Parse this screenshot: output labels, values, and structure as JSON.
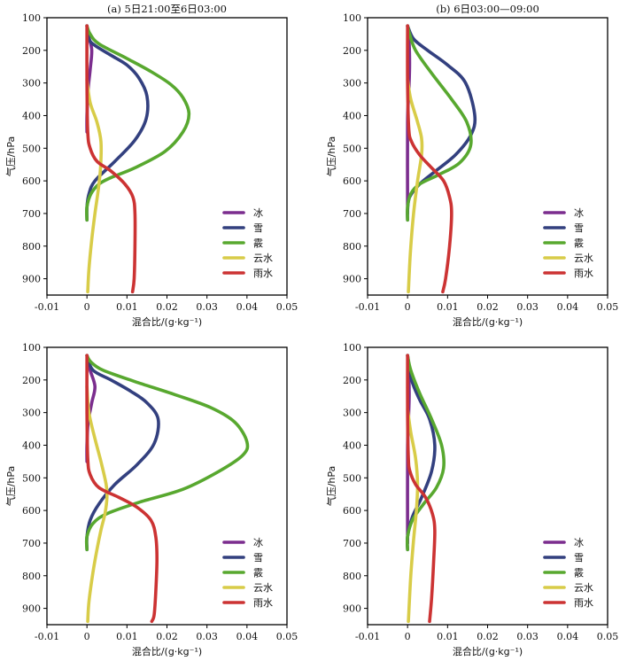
{
  "chart_data": [
    {
      "type": "line",
      "title": "(a) 5日21:00至6日03:00",
      "xlabel": "混合比/(g·kg⁻¹)",
      "ylabel": "气压/hPa",
      "xlim": [
        -0.01,
        0.05
      ],
      "ylim": [
        100,
        950
      ],
      "y_inverted": true,
      "xticks": [
        "-0.01",
        "0",
        "0.01",
        "0.02",
        "0.03",
        "0.04",
        "0.05"
      ],
      "yticks": [
        "100",
        "200",
        "300",
        "400",
        "500",
        "600",
        "700",
        "800",
        "900"
      ],
      "legend_position": "bottom-right",
      "series": [
        {
          "name": "冰",
          "color": "#7b2d8e",
          "x": [
            0,
            0.0005,
            0.0012,
            0.0008,
            0.0003,
            0,
            0
          ],
          "y": [
            125,
            160,
            200,
            260,
            320,
            400,
            450
          ]
        },
        {
          "name": "雪",
          "color": "#33407f",
          "x": [
            0,
            0.0005,
            0.002,
            0.006,
            0.01,
            0.013,
            0.015,
            0.0148,
            0.012,
            0.007,
            0.002,
            0.0005,
            0,
            0
          ],
          "y": [
            125,
            165,
            185,
            215,
            245,
            285,
            340,
            410,
            475,
            540,
            600,
            640,
            680,
            720
          ]
        },
        {
          "name": "霰",
          "color": "#58a82f",
          "x": [
            0,
            0.0008,
            0.003,
            0.01,
            0.016,
            0.021,
            0.024,
            0.0255,
            0.024,
            0.0195,
            0.012,
            0.006,
            0.003,
            0.001,
            0,
            0
          ],
          "y": [
            125,
            150,
            180,
            225,
            265,
            305,
            345,
            395,
            450,
            510,
            560,
            590,
            610,
            640,
            680,
            720
          ]
        },
        {
          "name": "云水",
          "color": "#d8cc48",
          "x": [
            0,
            0.0008,
            0.0025,
            0.0035,
            0.0034,
            0.0028,
            0.002,
            0.0012,
            0.0005,
            0.0002
          ],
          "y": [
            290,
            360,
            420,
            480,
            560,
            630,
            700,
            780,
            870,
            940
          ]
        },
        {
          "name": "雨水",
          "color": "#cc3333",
          "x": [
            0,
            0,
            0.0002,
            0.0008,
            0.0025,
            0.006,
            0.0095,
            0.0115,
            0.012,
            0.012,
            0.0118,
            0.0114
          ],
          "y": [
            125,
            300,
            450,
            500,
            540,
            570,
            610,
            650,
            700,
            800,
            900,
            940
          ]
        }
      ]
    },
    {
      "type": "line",
      "title": "(b) 6日03:00—09:00",
      "xlabel": "混合比/(g·kg⁻¹)",
      "ylabel": "气压/hPa",
      "xlim": [
        -0.01,
        0.05
      ],
      "ylim": [
        100,
        950
      ],
      "y_inverted": true,
      "xticks": [
        "-0.01",
        "0",
        "0.01",
        "0.02",
        "0.03",
        "0.04",
        "0.05"
      ],
      "yticks": [
        "100",
        "200",
        "300",
        "400",
        "500",
        "600",
        "700",
        "800",
        "900"
      ],
      "legend_position": "bottom-right",
      "series": [
        {
          "name": "冰",
          "color": "#7b2d8e",
          "x": [
            0,
            0.0004,
            0.0005,
            0.0003,
            0,
            0
          ],
          "y": [
            125,
            180,
            250,
            330,
            420,
            700
          ]
        },
        {
          "name": "雪",
          "color": "#33407f",
          "x": [
            0,
            0.0015,
            0.005,
            0.01,
            0.0145,
            0.0168,
            0.0158,
            0.012,
            0.007,
            0.003,
            0.0005,
            0,
            0
          ],
          "y": [
            125,
            165,
            200,
            245,
            300,
            400,
            460,
            520,
            570,
            610,
            650,
            690,
            720
          ]
        },
        {
          "name": "霰",
          "color": "#58a82f",
          "x": [
            0,
            0.0005,
            0.002,
            0.006,
            0.011,
            0.0148,
            0.0158,
            0.013,
            0.008,
            0.003,
            0.0008,
            0,
            0
          ],
          "y": [
            125,
            150,
            200,
            270,
            350,
            420,
            490,
            545,
            580,
            610,
            640,
            680,
            720
          ]
        },
        {
          "name": "云水",
          "color": "#d8cc48",
          "x": [
            0,
            0.0008,
            0.0025,
            0.0035,
            0.0035,
            0.0025,
            0.0015,
            0.0007,
            0.0002
          ],
          "y": [
            290,
            350,
            420,
            470,
            520,
            600,
            700,
            820,
            940
          ]
        },
        {
          "name": "雨水",
          "color": "#cc3333",
          "x": [
            0,
            0,
            0.0003,
            0.001,
            0.003,
            0.006,
            0.009,
            0.0105,
            0.011,
            0.0105,
            0.0095,
            0.0088
          ],
          "y": [
            125,
            300,
            440,
            480,
            520,
            560,
            600,
            650,
            700,
            800,
            900,
            940
          ]
        }
      ]
    },
    {
      "type": "line",
      "title": "",
      "xlabel": "混合比/(g·kg⁻¹)",
      "ylabel": "气压/hPa",
      "xlim": [
        -0.01,
        0.05
      ],
      "ylim": [
        100,
        950
      ],
      "y_inverted": true,
      "xticks": [
        "-0.01",
        "0",
        "0.01",
        "0.02",
        "0.03",
        "0.04",
        "0.05"
      ],
      "yticks": [
        "100",
        "200",
        "300",
        "400",
        "500",
        "600",
        "700",
        "800",
        "900"
      ],
      "legend_position": "bottom-right",
      "series": [
        {
          "name": "冰",
          "color": "#7b2d8e",
          "x": [
            0,
            0.0008,
            0.002,
            0.0012,
            0.0003,
            0,
            0
          ],
          "y": [
            125,
            170,
            220,
            270,
            330,
            400,
            450
          ]
        },
        {
          "name": "雪",
          "color": "#33407f",
          "x": [
            0,
            0.0015,
            0.006,
            0.011,
            0.015,
            0.0178,
            0.0168,
            0.0125,
            0.007,
            0.003,
            0.0008,
            0,
            0
          ],
          "y": [
            125,
            170,
            200,
            235,
            270,
            320,
            395,
            460,
            520,
            580,
            630,
            680,
            720
          ]
        },
        {
          "name": "霰",
          "color": "#58a82f",
          "x": [
            0,
            0.001,
            0.004,
            0.012,
            0.022,
            0.031,
            0.037,
            0.04,
            0.039,
            0.033,
            0.024,
            0.013,
            0.005,
            0.0015,
            0,
            0
          ],
          "y": [
            125,
            145,
            170,
            205,
            245,
            285,
            330,
            390,
            430,
            480,
            535,
            575,
            610,
            640,
            680,
            720
          ]
        },
        {
          "name": "云水",
          "color": "#d8cc48",
          "x": [
            0,
            0.0005,
            0.002,
            0.0035,
            0.0048,
            0.005,
            0.0045,
            0.0035,
            0.0025,
            0.0015,
            0.0005,
            0.0002
          ],
          "y": [
            220,
            300,
            380,
            450,
            520,
            560,
            610,
            660,
            720,
            790,
            880,
            940
          ]
        },
        {
          "name": "雨水",
          "color": "#cc3333",
          "x": [
            0,
            0,
            0.0002,
            0.0008,
            0.003,
            0.008,
            0.0125,
            0.016,
            0.0172,
            0.0175,
            0.0172,
            0.0168,
            0.0162
          ],
          "y": [
            125,
            300,
            440,
            490,
            530,
            560,
            590,
            630,
            680,
            750,
            850,
            920,
            940
          ]
        }
      ]
    },
    {
      "type": "line",
      "title": "",
      "xlabel": "混合比/(g·kg⁻¹)",
      "ylabel": "气压/hPa",
      "xlim": [
        -0.01,
        0.05
      ],
      "ylim": [
        100,
        950
      ],
      "y_inverted": true,
      "xticks": [
        "-0.01",
        "0",
        "0.01",
        "0.02",
        "0.03",
        "0.04",
        "0.05"
      ],
      "yticks": [
        "100",
        "200",
        "300",
        "400",
        "500",
        "600",
        "700",
        "800",
        "900"
      ],
      "legend_position": "bottom-right",
      "series": [
        {
          "name": "冰",
          "color": "#7b2d8e",
          "x": [
            0,
            0.0003,
            0.0004,
            0.0002,
            0,
            0
          ],
          "y": [
            125,
            180,
            250,
            330,
            420,
            700
          ]
        },
        {
          "name": "雪",
          "color": "#33407f",
          "x": [
            0,
            0.001,
            0.003,
            0.0055,
            0.0068,
            0.006,
            0.0035,
            0.0012,
            0,
            0
          ],
          "y": [
            125,
            200,
            260,
            320,
            400,
            480,
            560,
            620,
            680,
            720
          ]
        },
        {
          "name": "霰",
          "color": "#58a82f",
          "x": [
            0,
            0.0008,
            0.003,
            0.006,
            0.0085,
            0.009,
            0.0072,
            0.004,
            0.0012,
            0,
            0
          ],
          "y": [
            125,
            170,
            240,
            320,
            400,
            470,
            530,
            580,
            630,
            680,
            720
          ]
        },
        {
          "name": "云水",
          "color": "#d8cc48",
          "x": [
            0,
            0.0008,
            0.002,
            0.0025,
            0.0022,
            0.0015,
            0.0008,
            0.0002
          ],
          "y": [
            290,
            360,
            440,
            520,
            600,
            690,
            800,
            940
          ]
        },
        {
          "name": "雨水",
          "color": "#cc3333",
          "x": [
            0,
            0,
            0.0002,
            0.0006,
            0.002,
            0.0045,
            0.0062,
            0.0068,
            0.0065,
            0.006,
            0.0055
          ],
          "y": [
            125,
            300,
            440,
            480,
            520,
            560,
            610,
            660,
            760,
            870,
            940
          ]
        }
      ]
    }
  ]
}
